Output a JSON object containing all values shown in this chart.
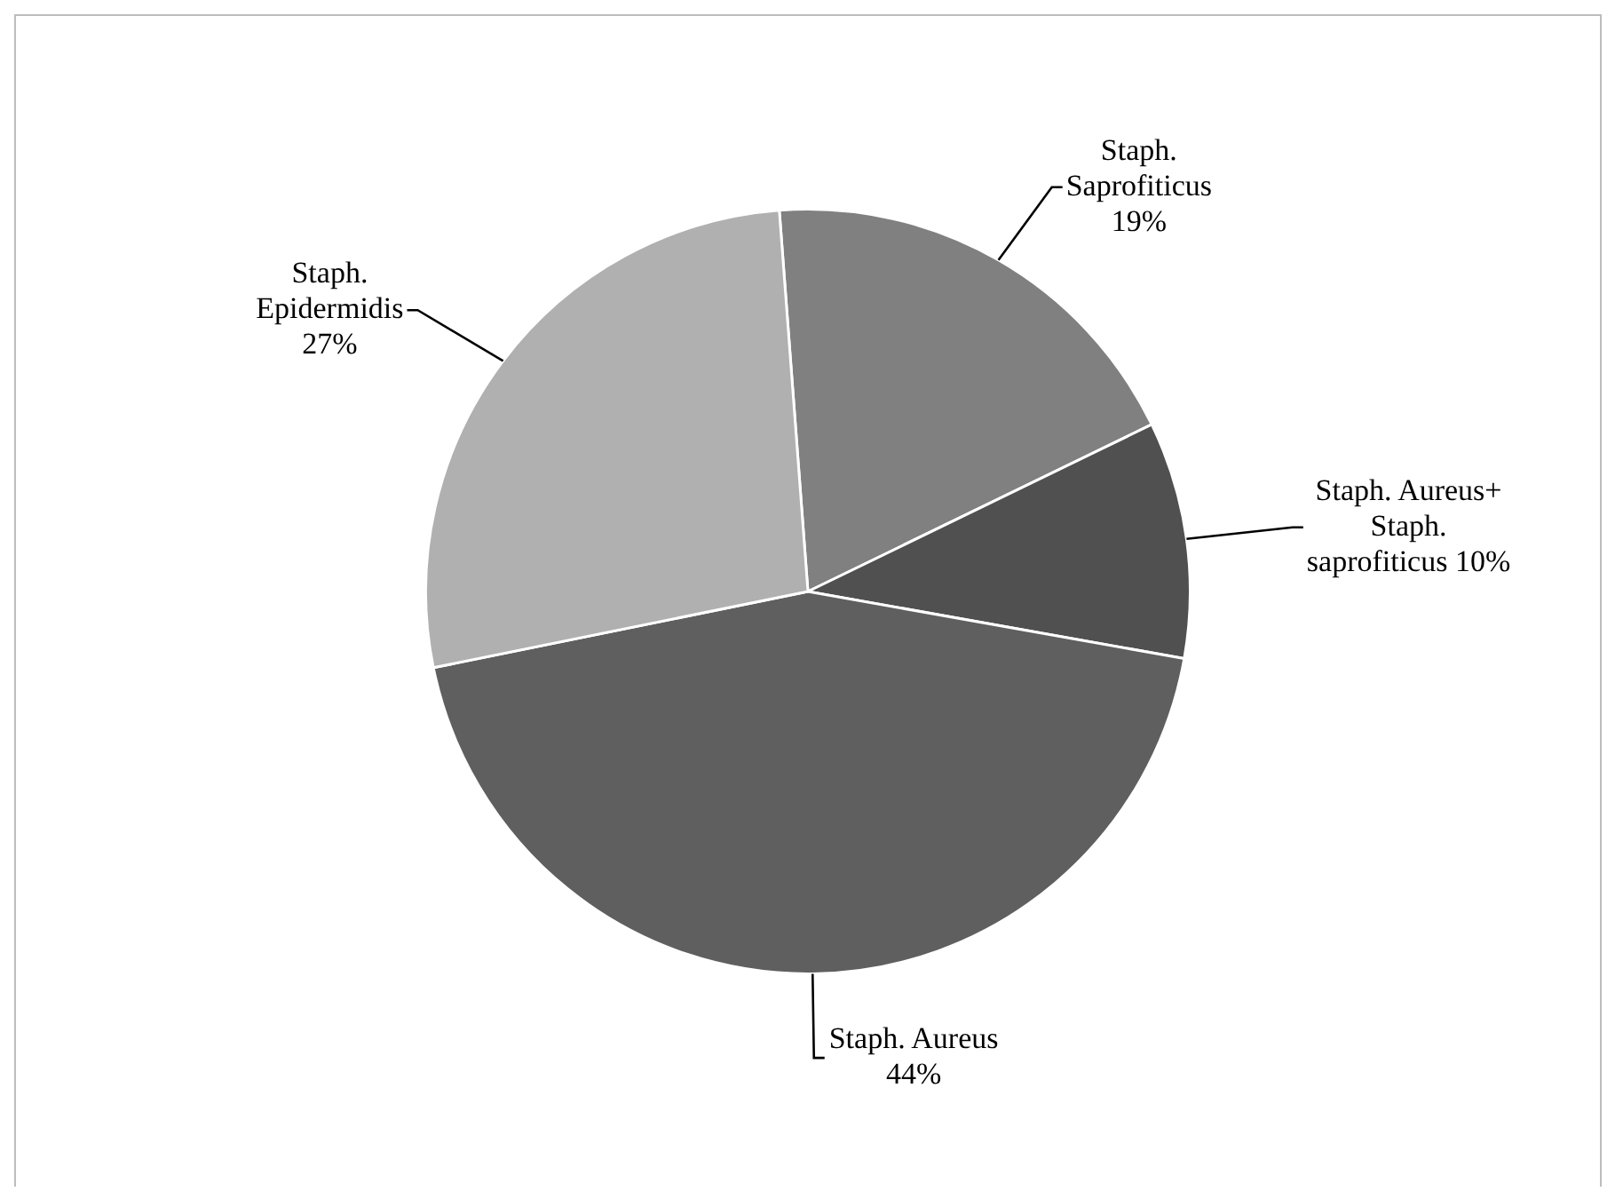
{
  "chart_data": {
    "type": "pie",
    "categories": [
      "Staph. Saprofiticus",
      "Staph. Aureus+ Staph. saprofiticus",
      "Staph. Aureus",
      "Staph. Epidermidis"
    ],
    "values": [
      19,
      10,
      44,
      27
    ],
    "value_labels": [
      "19%",
      "10%",
      "44%",
      "27%"
    ],
    "colors": [
      "#808080",
      "#505050",
      "#5f5f5f",
      "#b0b0b0"
    ],
    "legend": false
  }
}
